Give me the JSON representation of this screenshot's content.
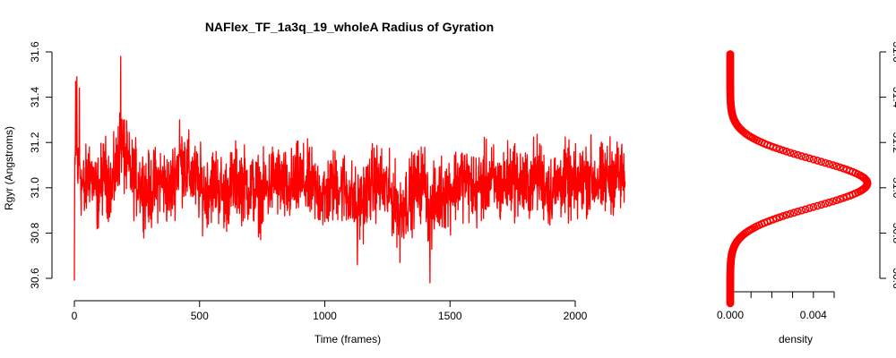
{
  "colors": {
    "series": "#ff0000",
    "axis": "#000000",
    "background": "#ffffff"
  },
  "chart_data": [
    {
      "type": "line",
      "title": "NAFlex_TF_1a3q_19_wholeA Radius of Gyration",
      "xlabel": "Time (frames)",
      "ylabel": "Rgyr (Angstroms)",
      "xlim": [
        0,
        2200
      ],
      "ylim": [
        30.6,
        31.6
      ],
      "xticks": [
        0,
        500,
        1000,
        1500,
        2000
      ],
      "xtick_labels": [
        "0",
        "500",
        "1000",
        "1500",
        "2000"
      ],
      "yticks": [
        30.6,
        30.8,
        31.0,
        31.2,
        31.4,
        31.6
      ],
      "ytick_labels": [
        "30.6",
        "30.8",
        "31.0",
        "31.2",
        "31.4",
        "31.6"
      ],
      "grid": false,
      "color": "#ff0000",
      "n_frames": 2200,
      "mean": 31.03,
      "points": [
        [
          0,
          30.59
        ],
        [
          5,
          31.47
        ],
        [
          10,
          31.49
        ],
        [
          15,
          31.05
        ],
        [
          20,
          31.44
        ],
        [
          25,
          31.04
        ],
        [
          40,
          30.9
        ],
        [
          60,
          31.18
        ],
        [
          90,
          30.85
        ],
        [
          120,
          31.15
        ],
        [
          150,
          30.95
        ],
        [
          175,
          31.27
        ],
        [
          185,
          31.58
        ],
        [
          200,
          31.3
        ],
        [
          230,
          31.1
        ],
        [
          260,
          31.02
        ],
        [
          300,
          30.88
        ],
        [
          340,
          31.05
        ],
        [
          380,
          30.9
        ],
        [
          420,
          31.3
        ],
        [
          440,
          31.2
        ],
        [
          480,
          31.05
        ],
        [
          520,
          30.9
        ],
        [
          560,
          31.03
        ],
        [
          600,
          30.85
        ],
        [
          650,
          31.05
        ],
        [
          700,
          30.95
        ],
        [
          750,
          30.85
        ],
        [
          800,
          31.08
        ],
        [
          850,
          30.9
        ],
        [
          900,
          31.05
        ],
        [
          950,
          30.95
        ],
        [
          1000,
          30.85
        ],
        [
          1050,
          31.0
        ],
        [
          1100,
          30.88
        ],
        [
          1130,
          30.66
        ],
        [
          1160,
          30.85
        ],
        [
          1200,
          31.05
        ],
        [
          1250,
          30.9
        ],
        [
          1300,
          30.67
        ],
        [
          1350,
          30.9
        ],
        [
          1400,
          31.05
        ],
        [
          1420,
          30.58
        ],
        [
          1450,
          30.85
        ],
        [
          1500,
          30.92
        ],
        [
          1550,
          31.08
        ],
        [
          1600,
          30.9
        ],
        [
          1650,
          31.05
        ],
        [
          1700,
          30.95
        ],
        [
          1750,
          31.1
        ],
        [
          1800,
          30.95
        ],
        [
          1850,
          31.12
        ],
        [
          1900,
          30.9
        ],
        [
          1950,
          31.05
        ],
        [
          2000,
          30.95
        ],
        [
          2050,
          31.1
        ],
        [
          2100,
          31.0
        ],
        [
          2150,
          31.12
        ],
        [
          2190,
          31.08
        ]
      ]
    },
    {
      "type": "line",
      "xlabel": "density",
      "xlim": [
        0,
        0.0065
      ],
      "xticks": [
        0,
        0.001,
        0.002,
        0.003,
        0.004,
        0.005
      ],
      "xtick_labels": [
        "0.000",
        "",
        "",
        "",
        "0.004",
        ""
      ],
      "ylim": [
        30.6,
        31.6
      ],
      "yticks": [
        30.6,
        30.8,
        31.0,
        31.2,
        31.4,
        31.6
      ],
      "ytick_labels": [
        "30.6",
        "30.8",
        "31.0",
        "31.2",
        "31.4",
        "31.6"
      ],
      "y_axis_side": "right",
      "color": "#ff0000",
      "marker": "circle",
      "y_range": [
        30.49,
        31.59
      ],
      "center": 31.02,
      "sd": 0.105,
      "peak_density": 0.0066
    }
  ]
}
